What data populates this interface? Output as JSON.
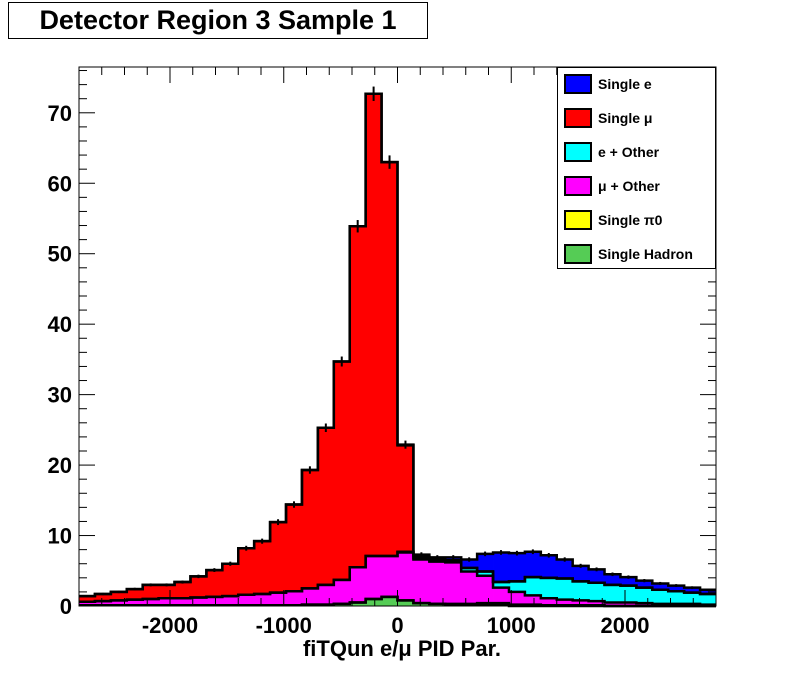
{
  "chart_data": {
    "type": "stacked_histogram",
    "title": "Detector Region 3 Sample 1",
    "xlabel": "fiTQun e/μ PID Par.",
    "ylabel": "",
    "xlim": [
      -2800,
      2800
    ],
    "ylim": [
      0,
      76.5
    ],
    "bin_edges_start": -2800,
    "bin_width": 140,
    "x_ticks": [
      -2000,
      -1000,
      0,
      1000,
      2000
    ],
    "x_tick_labels": [
      "-2000",
      "-1000",
      "0",
      "1000",
      "2000"
    ],
    "y_ticks": [
      0,
      10,
      20,
      30,
      40,
      50,
      60,
      70
    ],
    "y_tick_labels": [
      "0",
      "10",
      "20",
      "30",
      "40",
      "50",
      "60",
      "70"
    ],
    "grid": false,
    "legend_position": "top-right",
    "series": [
      {
        "name": "Single e",
        "color": "#0000ff",
        "values": [
          0,
          0,
          0,
          0,
          0,
          0,
          0,
          0,
          0,
          0,
          0,
          0,
          0,
          0,
          0,
          0,
          0,
          0,
          0,
          0,
          0.1,
          0.2,
          0.3,
          0.4,
          1.2,
          2.5,
          4.2,
          4.0,
          3.6,
          3.2,
          2.7,
          2.2,
          1.9,
          1.5,
          1.2,
          1.0,
          0.9,
          0.8,
          0.7,
          0.6
        ]
      },
      {
        "name": "Single μ",
        "color": "#ff0000",
        "values": [
          0.8,
          1.0,
          1.2,
          1.5,
          2.0,
          1.9,
          2.3,
          3.0,
          3.8,
          4.6,
          6.6,
          7.5,
          10.0,
          12.3,
          16.8,
          22.3,
          31.0,
          48.4,
          65.6,
          55.9,
          15.1,
          0.3,
          0.1,
          0,
          0,
          0,
          0,
          0,
          0,
          0,
          0,
          0,
          0,
          0,
          0,
          0,
          0,
          0,
          0,
          0
        ]
      },
      {
        "name": "e + Other",
        "color": "#00ffff",
        "values": [
          0,
          0,
          0,
          0,
          0,
          0,
          0,
          0,
          0,
          0,
          0,
          0,
          0,
          0,
          0,
          0,
          0,
          0,
          0,
          0,
          0.1,
          0.2,
          0.2,
          0.3,
          0.5,
          0.6,
          0.8,
          1.5,
          2.6,
          2.9,
          3.0,
          2.7,
          2.6,
          2.5,
          2.4,
          2.2,
          2.0,
          1.8,
          1.6,
          1.5
        ]
      },
      {
        "name": "μ + Other",
        "color": "#ff00ff",
        "values": [
          0.5,
          0.6,
          0.7,
          0.8,
          0.9,
          1.0,
          1.0,
          1.1,
          1.2,
          1.3,
          1.5,
          1.6,
          1.8,
          2.0,
          2.3,
          2.8,
          3.4,
          5.0,
          6.1,
          5.8,
          6.8,
          6.2,
          6.0,
          5.9,
          4.6,
          3.9,
          2.2,
          1.8,
          1.3,
          1.0,
          0.8,
          0.7,
          0.6,
          0.5,
          0.5,
          0.4,
          0.3,
          0.3,
          0.3,
          0.2
        ]
      },
      {
        "name": "Single π0",
        "color": "#ffff00",
        "values": [
          0,
          0,
          0,
          0,
          0,
          0,
          0,
          0,
          0,
          0,
          0,
          0,
          0,
          0,
          0,
          0,
          0,
          0,
          0,
          0,
          0,
          0,
          0,
          0.1,
          0.2,
          0.3,
          0.3,
          0.2,
          0.2,
          0.1,
          0.1,
          0.1,
          0.1,
          0,
          0,
          0,
          0,
          0,
          0,
          0
        ]
      },
      {
        "name": "Single Hadron",
        "color": "#55cc55",
        "values": [
          0.1,
          0.1,
          0.1,
          0.1,
          0.1,
          0.1,
          0.1,
          0.1,
          0.1,
          0.1,
          0.1,
          0.1,
          0.1,
          0.1,
          0.2,
          0.2,
          0.3,
          0.5,
          1.0,
          1.3,
          0.8,
          0.4,
          0.3,
          0.2,
          0.1,
          0.1,
          0.1,
          0,
          0,
          0,
          0,
          0,
          0,
          0,
          0,
          0,
          0,
          0,
          0,
          0
        ]
      }
    ]
  }
}
